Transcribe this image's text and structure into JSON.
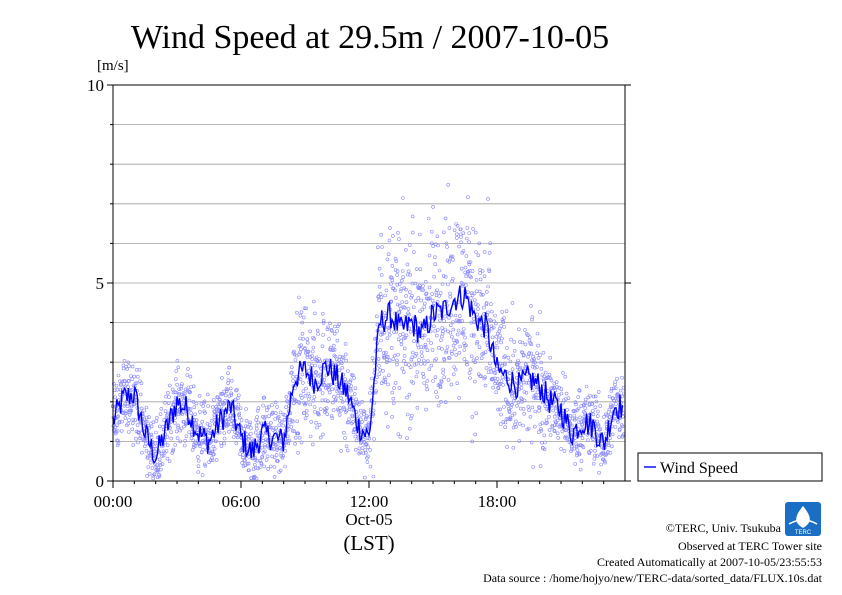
{
  "chart_data": {
    "type": "scatter",
    "title": "Wind Speed at 29.5m / 2007-10-05",
    "ylabel": "[m/s]",
    "ylim": [
      0,
      10
    ],
    "yticks": [
      0,
      5,
      10
    ],
    "xlim": [
      "2007-10-05 00:00",
      "2007-10-05 24:00"
    ],
    "xticks": [
      "00:00",
      "06:00",
      "12:00",
      "18:00"
    ],
    "xaxis_date_label": "Oct-05",
    "xaxis_timezone_label": "(LST)",
    "grid": "horizontal-lines-every-1-m/s",
    "legend": {
      "placement": "right",
      "entries": [
        "Wind Speed"
      ]
    },
    "colors": {
      "line": "#0000ff",
      "scatter": "#8888ff",
      "grid": "#a0a0a0"
    },
    "series": [
      {
        "name": "Wind Speed",
        "x_hours": [
          0,
          0.5,
          1,
          1.5,
          2,
          2.5,
          3,
          3.5,
          4,
          4.5,
          5,
          5.5,
          6,
          6.5,
          7,
          7.5,
          8,
          8.5,
          9,
          9.5,
          10,
          10.5,
          11,
          11.5,
          12,
          12.5,
          13,
          13.5,
          14,
          14.5,
          15,
          15.5,
          16,
          16.5,
          17,
          17.5,
          18,
          18.5,
          19,
          19.5,
          20,
          20.5,
          21,
          21.5,
          22,
          22.5,
          23,
          23.5
        ],
        "values": [
          1.5,
          2.1,
          2.2,
          1.2,
          0.6,
          1.3,
          2.0,
          1.8,
          1.2,
          1.0,
          1.5,
          1.9,
          1.1,
          0.7,
          1.2,
          1.1,
          1.0,
          2.6,
          2.8,
          2.5,
          2.9,
          2.6,
          2.2,
          1.4,
          1.1,
          4.0,
          4.2,
          3.8,
          4.0,
          3.7,
          4.2,
          4.3,
          4.6,
          4.7,
          4.1,
          3.9,
          2.8,
          2.6,
          2.4,
          2.6,
          2.4,
          2.0,
          1.8,
          1.2,
          1.5,
          1.4,
          0.9,
          1.9
        ]
      }
    ],
    "scatter_spread": "individual 10 s samples scattered about the line, roughly ±1 to ±2.5 m/s",
    "credits": [
      "©TERC, Univ. Tsukuba",
      "Observed at TERC Tower site",
      "Created Automatically at 2007-10-05/23:55:53",
      "Data source : /home/hojyo/new/TERC-data/sorted_data/FLUX.10s.dat"
    ],
    "logo_text": "TERC"
  }
}
